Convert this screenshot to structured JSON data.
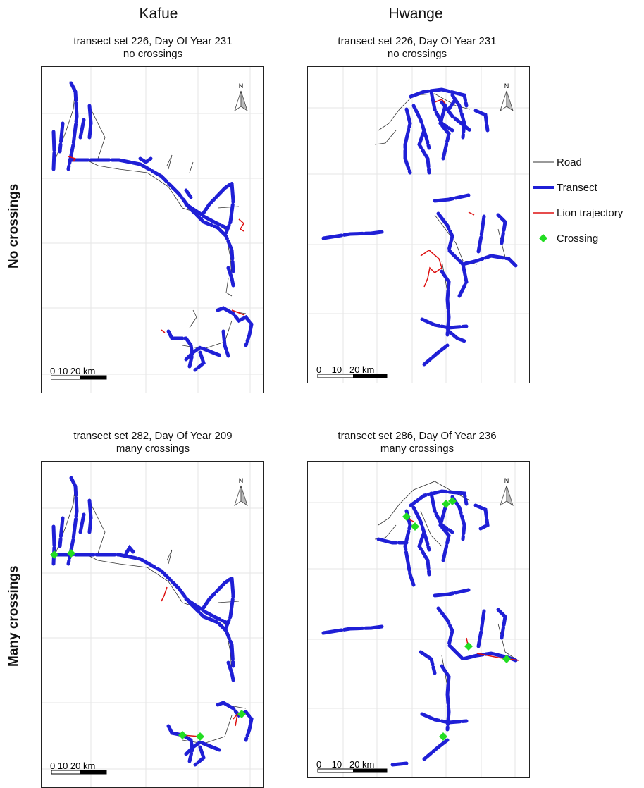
{
  "columns": [
    "Kafue",
    "Hwange"
  ],
  "rows": [
    "No crossings",
    "Many crossings"
  ],
  "panels": [
    {
      "line1": "transect set 226, Day Of Year 231",
      "line2": "no crossings"
    },
    {
      "line1": "transect set 226, Day Of Year 231",
      "line2": "no crossings"
    },
    {
      "line1": "transect set 282, Day Of Year 209",
      "line2": "many crossings"
    },
    {
      "line1": "transect set 286, Day Of Year 236",
      "line2": "many crossings"
    }
  ],
  "scalebar": {
    "kafue": "0  10 20 km",
    "hwange": "0    10   20 km"
  },
  "north": "N",
  "legend": {
    "road": "Road",
    "transect": "Transect",
    "lion": "Lion trajectory",
    "crossing": "Crossing"
  },
  "colors": {
    "road": "#333333",
    "transect": "#1f1fd6",
    "lion": "#dd1111",
    "crossing": "#22dd22"
  }
}
